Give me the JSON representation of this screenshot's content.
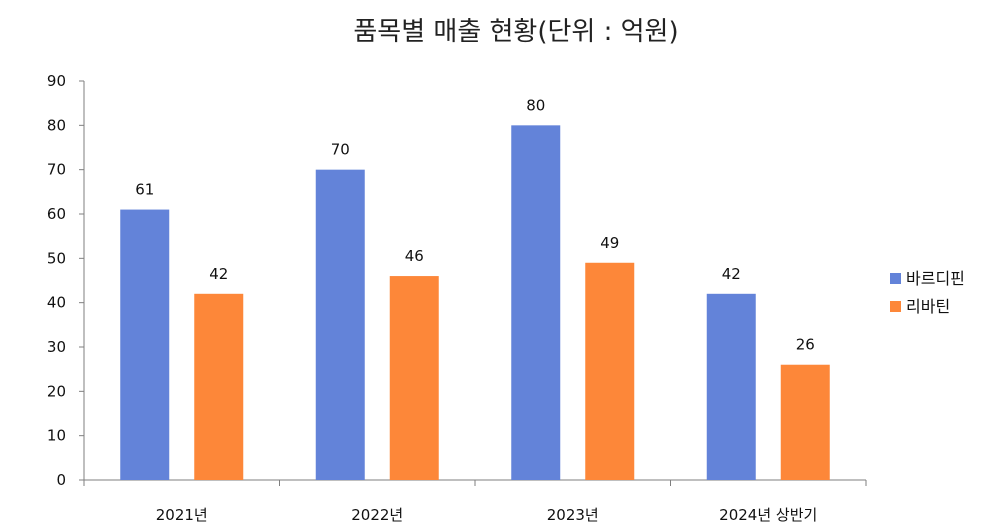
{
  "chart_data": {
    "type": "bar",
    "title": "품목별 매출 현황(단위 : 억원)",
    "categories": [
      "2021년",
      "2022년",
      "2023년",
      "2024년 상반기"
    ],
    "series": [
      {
        "name": "바르디핀",
        "values": [
          61,
          70,
          80,
          42
        ],
        "color": "#6383d9"
      },
      {
        "name": "리바틴",
        "values": [
          42,
          46,
          49,
          26
        ],
        "color": "#fd8739"
      }
    ],
    "ylim": [
      0,
      90
    ],
    "yticks": [
      "0",
      "10",
      "20",
      "30",
      "40",
      "50",
      "60",
      "70",
      "80",
      "90"
    ],
    "legend": "right",
    "grid": false,
    "data_labels": true
  }
}
